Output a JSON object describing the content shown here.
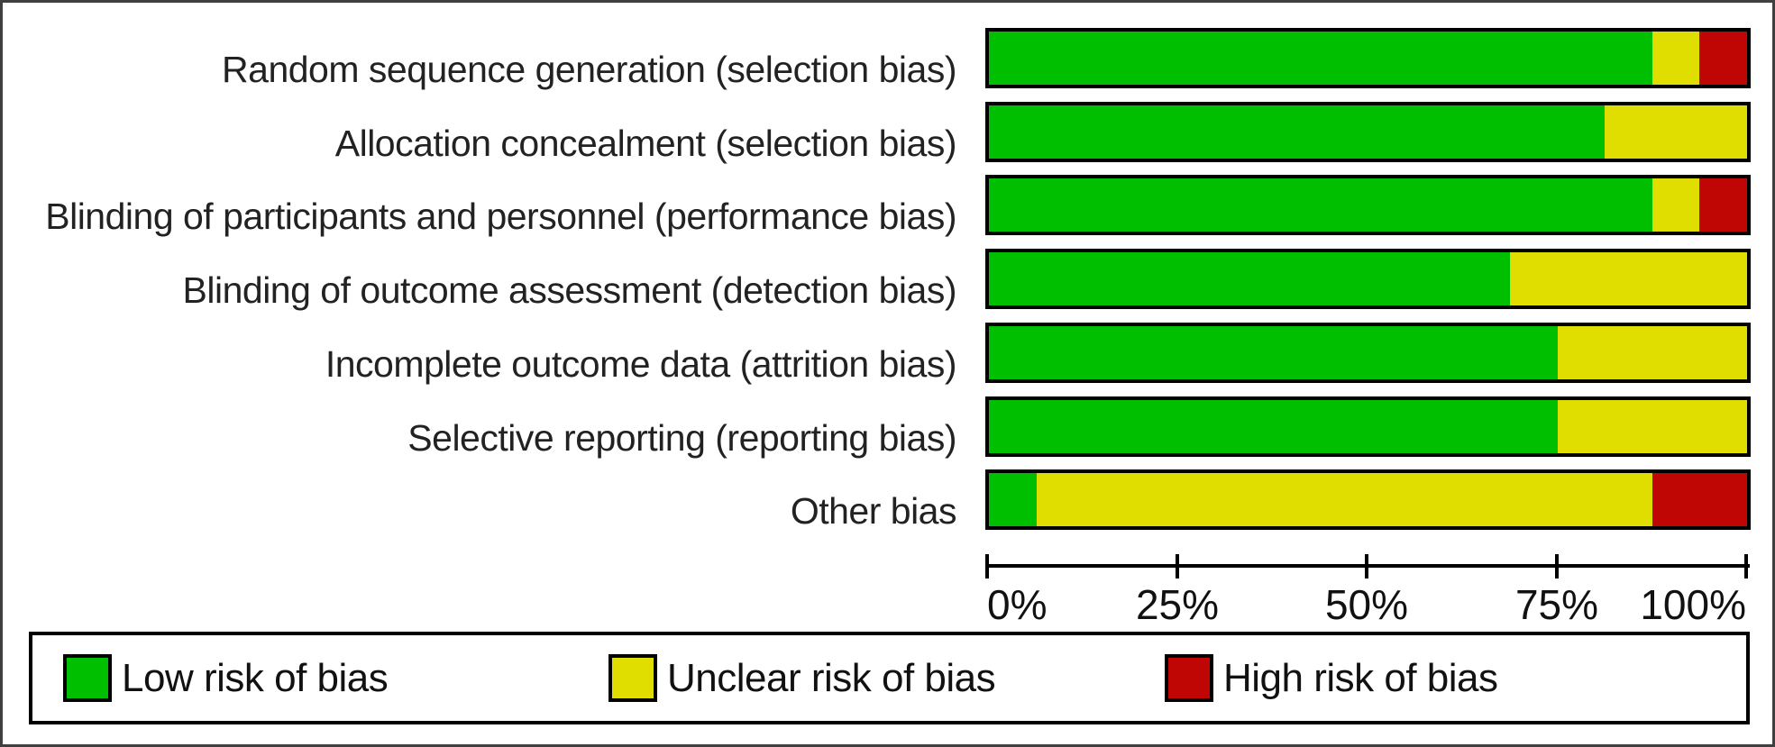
{
  "chart_data": {
    "type": "bar",
    "variant": "horizontal-stacked-100percent",
    "title": "",
    "xlabel": "",
    "ylabel": "",
    "grid": false,
    "legend_position": "bottom",
    "categories": [
      "Random sequence generation (selection bias)",
      "Allocation concealment (selection bias)",
      "Blinding of participants and personnel (performance bias)",
      "Blinding of outcome assessment (detection bias)",
      "Incomplete outcome data (attrition bias)",
      "Selective reporting (reporting bias)",
      "Other bias"
    ],
    "series": [
      {
        "name": "Low risk of bias",
        "color": "#00BE00",
        "values": [
          87.5,
          81.25,
          87.5,
          68.75,
          75.0,
          75.0,
          6.25
        ]
      },
      {
        "name": "Unclear risk of bias",
        "color": "#E0DE00",
        "values": [
          6.25,
          18.75,
          6.25,
          31.25,
          25.0,
          25.0,
          81.25
        ]
      },
      {
        "name": "High risk of bias",
        "color": "#C00505",
        "values": [
          6.25,
          0.0,
          6.25,
          0.0,
          0.0,
          0.0,
          12.5
        ]
      }
    ],
    "x_axis": {
      "min": 0,
      "max": 100,
      "tick_values": [
        0,
        25,
        50,
        75,
        100
      ],
      "tick_labels": [
        "0%",
        "25%",
        "50%",
        "75%",
        "100%"
      ]
    }
  },
  "legend": {
    "items": [
      {
        "label": "Low risk of bias",
        "color": "#00BE00"
      },
      {
        "label": "Unclear risk of bias",
        "color": "#E0DE00"
      },
      {
        "label": "High risk of bias",
        "color": "#C00505"
      }
    ]
  },
  "colors": {
    "low_risk": "#00BE00",
    "unclear_risk": "#E0DE00",
    "high_risk": "#C00505",
    "bar_border": "#000000",
    "figure_border": "#3f3f3f"
  }
}
